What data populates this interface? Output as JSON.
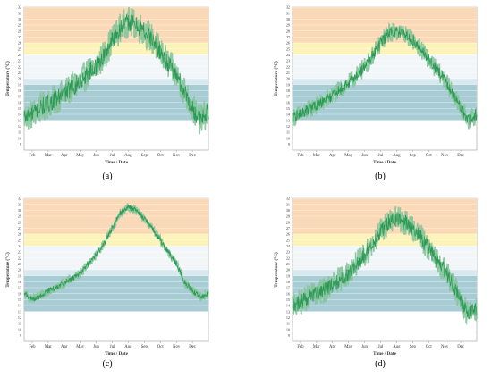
{
  "colors": {
    "band_hot": "#fbd9b6",
    "band_warm": "#fbf3b8",
    "band_light": "#f2f6f8",
    "band_cool": "#d7e9ef",
    "band_teal": "#a7ccd4",
    "band_deep": "#8fbcc6",
    "line": "#2c9a55",
    "line_light": "#86c49a",
    "axis": "#999999",
    "grid": "#ffffff",
    "text": "#333333"
  },
  "chart_data": [
    {
      "type": "line",
      "panel_label": "(a)",
      "ylabel": "Temperature (°C)",
      "xlabel": "Time / Date",
      "xticks": [
        "Feb",
        "Mar",
        "Apr",
        "May",
        "Jun",
        "Jul",
        "Aug",
        "Sep",
        "Oct",
        "Nov",
        "Dec"
      ],
      "ylim": [
        8,
        32
      ],
      "yticks": [
        9,
        10,
        11,
        12,
        13,
        14,
        15,
        16,
        17,
        18,
        19,
        20,
        21,
        22,
        23,
        24,
        25,
        26,
        27,
        28,
        29,
        30,
        31,
        32
      ],
      "bands": [
        {
          "from": 26,
          "to": 32,
          "color": "#fbd9b6"
        },
        {
          "from": 24,
          "to": 26,
          "color": "#fbf3b8"
        },
        {
          "from": 20,
          "to": 24,
          "color": "#f2f6f8"
        },
        {
          "from": 19,
          "to": 20,
          "color": "#d7e9ef"
        },
        {
          "from": 13,
          "to": 19,
          "color": "#a7ccd4"
        }
      ],
      "x": [
        0,
        0.5,
        1,
        1.5,
        2,
        2.5,
        3,
        3.5,
        4,
        4.5,
        5,
        5.5,
        6,
        6.5,
        7,
        7.5,
        8,
        8.5,
        9,
        9.5,
        10,
        10.5,
        11,
        11.5
      ],
      "y": [
        13.5,
        14,
        15,
        15.8,
        16.5,
        17.5,
        18.5,
        19.5,
        21,
        22,
        24,
        26.5,
        28.5,
        29.5,
        29,
        28,
        26.5,
        24.5,
        22.5,
        20.5,
        18,
        15,
        13,
        14.5
      ],
      "spread": 2.6
    },
    {
      "type": "line",
      "panel_label": "(b)",
      "ylabel": "Temperature (°C)",
      "xlabel": "Time / Date",
      "xticks": [
        "Feb",
        "Mar",
        "Apr",
        "May",
        "Jun",
        "Jul",
        "Aug",
        "Sep",
        "Oct",
        "Nov",
        "Dec"
      ],
      "ylim": [
        8,
        32
      ],
      "yticks": [
        9,
        10,
        11,
        12,
        13,
        14,
        15,
        16,
        17,
        18,
        19,
        20,
        21,
        22,
        23,
        24,
        25,
        26,
        27,
        28,
        29,
        30,
        31,
        32
      ],
      "bands": [
        {
          "from": 26,
          "to": 32,
          "color": "#fbd9b6"
        },
        {
          "from": 24,
          "to": 26,
          "color": "#fbf3b8"
        },
        {
          "from": 20,
          "to": 24,
          "color": "#f2f6f8"
        },
        {
          "from": 19,
          "to": 20,
          "color": "#d7e9ef"
        },
        {
          "from": 13,
          "to": 19,
          "color": "#a7ccd4"
        }
      ],
      "x": [
        0,
        0.5,
        1,
        1.5,
        2,
        2.5,
        3,
        3.5,
        4,
        4.5,
        5,
        5.5,
        6,
        6.5,
        7,
        7.5,
        8,
        8.5,
        9,
        9.5,
        10,
        10.5,
        11,
        11.5
      ],
      "y": [
        13.5,
        14,
        14.8,
        15.5,
        16.2,
        17.2,
        18.2,
        19.2,
        20.5,
        22,
        23.8,
        26,
        27.6,
        28,
        27.5,
        26.5,
        25,
        23.2,
        21.5,
        19.8,
        17.5,
        15,
        13,
        14
      ],
      "spread": 1.6
    },
    {
      "type": "line",
      "panel_label": "(c)",
      "ylabel": "Temperature (°C)",
      "xlabel": "Time / Date",
      "xticks": [
        "Feb",
        "Mar",
        "Apr",
        "May",
        "Jun",
        "Jul",
        "Aug",
        "Sep",
        "Oct",
        "Nov",
        "Dec"
      ],
      "ylim": [
        8,
        32
      ],
      "yticks": [
        9,
        10,
        11,
        12,
        13,
        14,
        15,
        16,
        17,
        18,
        19,
        20,
        21,
        22,
        23,
        24,
        25,
        26,
        27,
        28,
        29,
        30,
        31,
        32
      ],
      "bands": [
        {
          "from": 26,
          "to": 32,
          "color": "#fbd9b6"
        },
        {
          "from": 24,
          "to": 26,
          "color": "#fbf3b8"
        },
        {
          "from": 20,
          "to": 24,
          "color": "#f2f6f8"
        },
        {
          "from": 19,
          "to": 20,
          "color": "#d7e9ef"
        },
        {
          "from": 13,
          "to": 19,
          "color": "#a7ccd4"
        }
      ],
      "x": [
        0,
        0.5,
        1,
        1.5,
        2,
        2.5,
        3,
        3.5,
        4,
        4.5,
        5,
        5.5,
        6,
        6.5,
        7,
        7.5,
        8,
        8.5,
        9,
        9.5,
        10,
        10.5,
        11,
        11.5
      ],
      "y": [
        16,
        15,
        15.5,
        16.5,
        17,
        17.8,
        18.5,
        19.5,
        21,
        22.5,
        24.5,
        27,
        29.5,
        30.5,
        30,
        28.5,
        27,
        25,
        23,
        21,
        18,
        16.5,
        15.5,
        16
      ],
      "spread": 0.8
    },
    {
      "type": "line",
      "panel_label": "(d)",
      "ylabel": "Temperature (°C)",
      "xlabel": "Time / Date",
      "xticks": [
        "Feb",
        "Mar",
        "Apr",
        "May",
        "Jun",
        "Jul",
        "Aug",
        "Sep",
        "Oct",
        "Nov",
        "Dec"
      ],
      "ylim": [
        8,
        32
      ],
      "yticks": [
        9,
        10,
        11,
        12,
        13,
        14,
        15,
        16,
        17,
        18,
        19,
        20,
        21,
        22,
        23,
        24,
        25,
        26,
        27,
        28,
        29,
        30,
        31,
        32
      ],
      "bands": [
        {
          "from": 26,
          "to": 32,
          "color": "#fbd9b6"
        },
        {
          "from": 24,
          "to": 26,
          "color": "#fbf3b8"
        },
        {
          "from": 20,
          "to": 24,
          "color": "#f2f6f8"
        },
        {
          "from": 19,
          "to": 20,
          "color": "#d7e9ef"
        },
        {
          "from": 13,
          "to": 19,
          "color": "#a7ccd4"
        }
      ],
      "x": [
        0,
        0.5,
        1,
        1.5,
        2,
        2.5,
        3,
        3.5,
        4,
        4.5,
        5,
        5.5,
        6,
        6.5,
        7,
        7.5,
        8,
        8.5,
        9,
        9.5,
        10,
        10.5,
        11,
        11.5
      ],
      "y": [
        14,
        14.5,
        15.5,
        16,
        16.5,
        17.5,
        18.5,
        19.5,
        21,
        22.5,
        24.5,
        26.5,
        28,
        28.5,
        28,
        27,
        25.5,
        23.5,
        21.5,
        20,
        17.5,
        15,
        12.5,
        13.5
      ],
      "spread": 2.2
    }
  ]
}
